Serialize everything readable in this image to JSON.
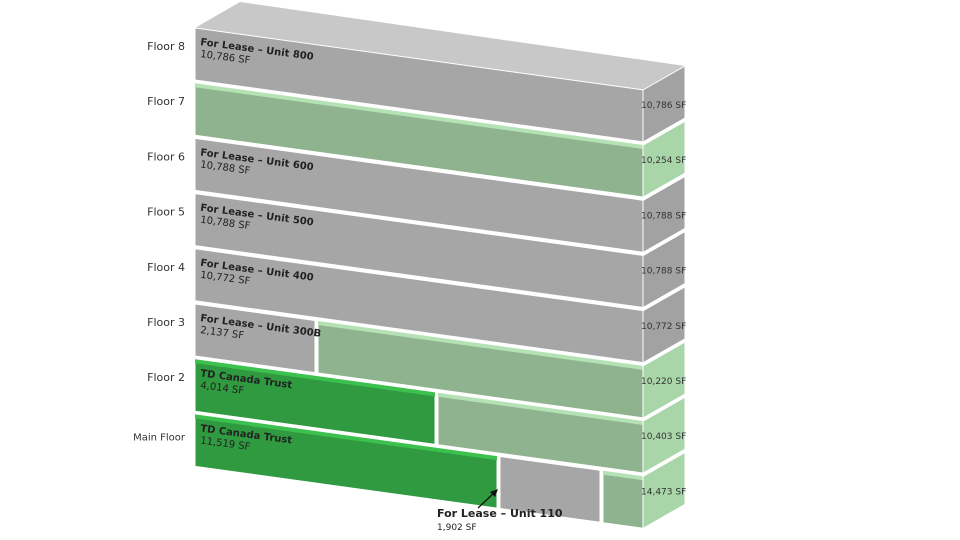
{
  "floors": [
    {
      "label": "Floor 8",
      "units": [
        {
          "name": "For Lease – Unit 800",
          "area": "10,786 SF"
        }
      ],
      "total": "10,786 SF"
    },
    {
      "label": "Floor 7",
      "units": [],
      "total": "10,254 SF"
    },
    {
      "label": "Floor 6",
      "units": [
        {
          "name": "For Lease – Unit 600",
          "area": "10,788 SF"
        }
      ],
      "total": "10,788 SF"
    },
    {
      "label": "Floor 5",
      "units": [
        {
          "name": "For Lease – Unit 500",
          "area": "10,788 SF"
        }
      ],
      "total": "10,788 SF"
    },
    {
      "label": "Floor 4",
      "units": [
        {
          "name": "For Lease – Unit 400",
          "area": "10,772 SF"
        }
      ],
      "total": "10,772 SF"
    },
    {
      "label": "Floor 3",
      "units": [
        {
          "name": "For Lease – Unit 300B",
          "area": "2,137 SF"
        }
      ],
      "total": "10,220 SF"
    },
    {
      "label": "Floor 2",
      "units": [
        {
          "name": "TD Canada Trust",
          "area": "4,014 SF"
        }
      ],
      "total": "10,403 SF"
    },
    {
      "label": "Main Floor",
      "units": [
        {
          "name": "TD Canada Trust",
          "area": "11,519 SF"
        }
      ],
      "total": "14,473 SF"
    }
  ],
  "callout": {
    "name": "For Lease – Unit 110",
    "area": "1,902 SF"
  }
}
